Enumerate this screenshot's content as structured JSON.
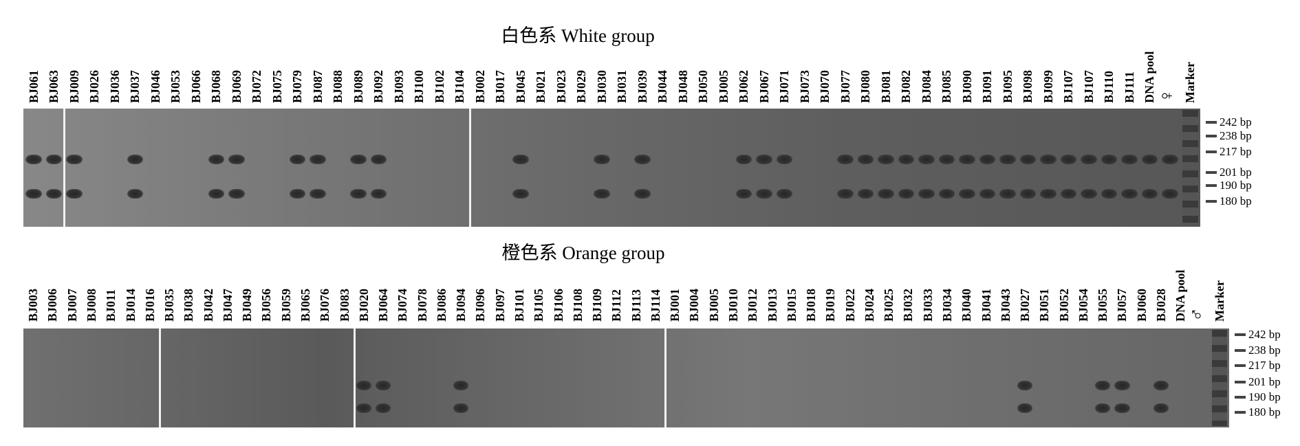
{
  "panels": [
    {
      "title": "白色系 White group",
      "separators_after": [
        2,
        22
      ],
      "lanes": [
        {
          "label": "BJ061",
          "bands": true
        },
        {
          "label": "BJ063",
          "bands": true
        },
        {
          "label": "BJ009",
          "bands": true
        },
        {
          "label": "BJ026",
          "bands": false
        },
        {
          "label": "BJ036",
          "bands": false
        },
        {
          "label": "BJ037",
          "bands": true
        },
        {
          "label": "BJ046",
          "bands": false
        },
        {
          "label": "BJ053",
          "bands": false
        },
        {
          "label": "BJ066",
          "bands": false
        },
        {
          "label": "BJ068",
          "bands": true
        },
        {
          "label": "BJ069",
          "bands": true
        },
        {
          "label": "BJ072",
          "bands": false
        },
        {
          "label": "BJ075",
          "bands": false
        },
        {
          "label": "BJ079",
          "bands": true
        },
        {
          "label": "BJ087",
          "bands": true
        },
        {
          "label": "BJ088",
          "bands": false
        },
        {
          "label": "BJ089",
          "bands": true
        },
        {
          "label": "BJ092",
          "bands": true
        },
        {
          "label": "BJ093",
          "bands": false
        },
        {
          "label": "BJ100",
          "bands": false
        },
        {
          "label": "BJ102",
          "bands": false
        },
        {
          "label": "BJ104",
          "bands": false
        },
        {
          "label": "BJ002",
          "bands": false
        },
        {
          "label": "BJ017",
          "bands": false
        },
        {
          "label": "BJ045",
          "bands": true
        },
        {
          "label": "BJ021",
          "bands": false
        },
        {
          "label": "BJ023",
          "bands": false
        },
        {
          "label": "BJ029",
          "bands": false
        },
        {
          "label": "BJ030",
          "bands": true
        },
        {
          "label": "BJ031",
          "bands": false
        },
        {
          "label": "BJ039",
          "bands": true
        },
        {
          "label": "BJ044",
          "bands": false
        },
        {
          "label": "BJ048",
          "bands": false
        },
        {
          "label": "BJ050",
          "bands": false
        },
        {
          "label": "BJ005",
          "bands": false
        },
        {
          "label": "BJ062",
          "bands": true
        },
        {
          "label": "BJ067",
          "bands": true
        },
        {
          "label": "BJ071",
          "bands": true
        },
        {
          "label": "BJ073",
          "bands": false
        },
        {
          "label": "BJ070",
          "bands": false
        },
        {
          "label": "BJ077",
          "bands": true
        },
        {
          "label": "BJ080",
          "bands": true
        },
        {
          "label": "BJ081",
          "bands": true
        },
        {
          "label": "BJ082",
          "bands": true
        },
        {
          "label": "BJ084",
          "bands": true
        },
        {
          "label": "BJ085",
          "bands": true
        },
        {
          "label": "BJ090",
          "bands": true
        },
        {
          "label": "BJ091",
          "bands": true
        },
        {
          "label": "BJ095",
          "bands": true
        },
        {
          "label": "BJ098",
          "bands": true
        },
        {
          "label": "BJ099",
          "bands": true
        },
        {
          "label": "BJ107",
          "bands": true
        },
        {
          "label": "BJ107",
          "bands": true
        },
        {
          "label": "BJ110",
          "bands": true
        },
        {
          "label": "BJ111",
          "bands": true
        },
        {
          "label": "DNA pool",
          "bands": true
        },
        {
          "label": "♀",
          "bands": true,
          "symbol": true
        },
        {
          "label": "Marker",
          "marker": true
        }
      ],
      "ladder": [
        "242 bp",
        "238 bp",
        "217 bp",
        "201 bp",
        "190 bp",
        "180 bp"
      ]
    },
    {
      "title": "橙色系 Orange group",
      "separators_after": [
        7,
        17,
        33
      ],
      "lanes": [
        {
          "label": "BJ003",
          "bands": false
        },
        {
          "label": "BJ006",
          "bands": false
        },
        {
          "label": "BJ007",
          "bands": false
        },
        {
          "label": "BJ008",
          "bands": false
        },
        {
          "label": "BJ011",
          "bands": false
        },
        {
          "label": "BJ014",
          "bands": false
        },
        {
          "label": "BJ016",
          "bands": false
        },
        {
          "label": "BJ035",
          "bands": false
        },
        {
          "label": "BJ038",
          "bands": false
        },
        {
          "label": "BJ042",
          "bands": false
        },
        {
          "label": "BJ047",
          "bands": false
        },
        {
          "label": "BJ049",
          "bands": false
        },
        {
          "label": "BJ056",
          "bands": false
        },
        {
          "label": "BJ059",
          "bands": false
        },
        {
          "label": "BJ065",
          "bands": false
        },
        {
          "label": "BJ076",
          "bands": false
        },
        {
          "label": "BJ083",
          "bands": false
        },
        {
          "label": "BJ020",
          "bands": true
        },
        {
          "label": "BJ064",
          "bands": true
        },
        {
          "label": "BJ074",
          "bands": false
        },
        {
          "label": "BJ078",
          "bands": false
        },
        {
          "label": "BJ086",
          "bands": false
        },
        {
          "label": "BJ094",
          "bands": true
        },
        {
          "label": "BJ096",
          "bands": false
        },
        {
          "label": "BJ097",
          "bands": false
        },
        {
          "label": "BJ101",
          "bands": false
        },
        {
          "label": "BJ105",
          "bands": false
        },
        {
          "label": "BJ106",
          "bands": false
        },
        {
          "label": "BJ108",
          "bands": false
        },
        {
          "label": "BJ109",
          "bands": false
        },
        {
          "label": "BJ112",
          "bands": false
        },
        {
          "label": "BJ113",
          "bands": false
        },
        {
          "label": "BJ114",
          "bands": false
        },
        {
          "label": "BJ001",
          "bands": false
        },
        {
          "label": "BJ004",
          "bands": false
        },
        {
          "label": "BJ005",
          "bands": false
        },
        {
          "label": "BJ010",
          "bands": false
        },
        {
          "label": "BJ012",
          "bands": false
        },
        {
          "label": "BJ013",
          "bands": false
        },
        {
          "label": "BJ015",
          "bands": false
        },
        {
          "label": "BJ018",
          "bands": false
        },
        {
          "label": "BJ019",
          "bands": false
        },
        {
          "label": "BJ022",
          "bands": false
        },
        {
          "label": "BJ024",
          "bands": false
        },
        {
          "label": "BJ025",
          "bands": false
        },
        {
          "label": "BJ032",
          "bands": false
        },
        {
          "label": "BJ033",
          "bands": false
        },
        {
          "label": "BJ034",
          "bands": false
        },
        {
          "label": "BJ040",
          "bands": false
        },
        {
          "label": "BJ041",
          "bands": false
        },
        {
          "label": "BJ043",
          "bands": false
        },
        {
          "label": "BJ027",
          "bands": true
        },
        {
          "label": "BJ051",
          "bands": false
        },
        {
          "label": "BJ052",
          "bands": false
        },
        {
          "label": "BJ054",
          "bands": false
        },
        {
          "label": "BJ055",
          "bands": true
        },
        {
          "label": "BJ057",
          "bands": true
        },
        {
          "label": "BJ060",
          "bands": false
        },
        {
          "label": "BJ028",
          "bands": true
        },
        {
          "label": "DNA pool",
          "bands": false
        },
        {
          "label": "♂",
          "bands": false,
          "symbol": true
        },
        {
          "label": "Marker",
          "marker": true
        }
      ],
      "ladder": [
        "242 bp",
        "238 bp",
        "217 bp",
        "201 bp",
        "190 bp",
        "180 bp"
      ]
    }
  ]
}
